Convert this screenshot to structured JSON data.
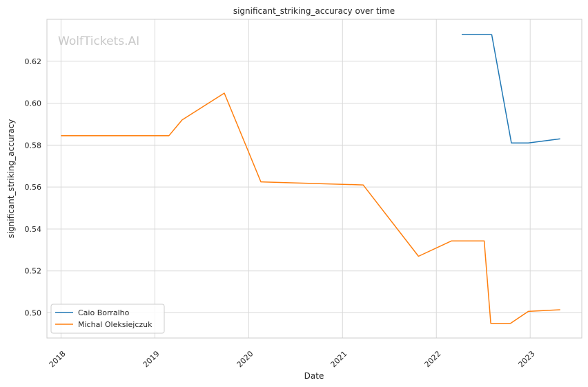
{
  "chart_data": {
    "type": "line",
    "title": "significant_striking_accuracy over time",
    "xlabel": "Date",
    "ylabel": "significant_striking_accuracy",
    "watermark": "WolfTickets.AI",
    "xlim": [
      2017.85,
      2023.55
    ],
    "ylim": [
      0.488,
      0.64
    ],
    "x_ticks": [
      2018,
      2019,
      2020,
      2021,
      2022,
      2023
    ],
    "x_tick_labels": [
      "2018",
      "2019",
      "2020",
      "2021",
      "2022",
      "2023"
    ],
    "y_ticks": [
      0.5,
      0.52,
      0.54,
      0.56,
      0.58,
      0.6,
      0.62
    ],
    "y_tick_labels": [
      "0.50",
      "0.52",
      "0.54",
      "0.56",
      "0.58",
      "0.60",
      "0.62"
    ],
    "grid": true,
    "legend_position": "lower-left",
    "series": [
      {
        "name": "Caio Borralho",
        "color": "#1f77b4",
        "x": [
          2022.27,
          2022.59,
          2022.8,
          2022.98,
          2023.32
        ],
        "y": [
          0.6327,
          0.6327,
          0.581,
          0.581,
          0.583
        ]
      },
      {
        "name": "Michal Oleksiejczuk",
        "color": "#ff7f0e",
        "x": [
          2018.0,
          2019.15,
          2019.29,
          2019.74,
          2020.13,
          2021.22,
          2021.81,
          2022.16,
          2022.51,
          2022.58,
          2022.79,
          2022.98,
          2023.32
        ],
        "y": [
          0.5845,
          0.5845,
          0.592,
          0.6048,
          0.5625,
          0.561,
          0.527,
          0.5343,
          0.5343,
          0.495,
          0.495,
          0.5007,
          0.5015
        ]
      }
    ]
  }
}
